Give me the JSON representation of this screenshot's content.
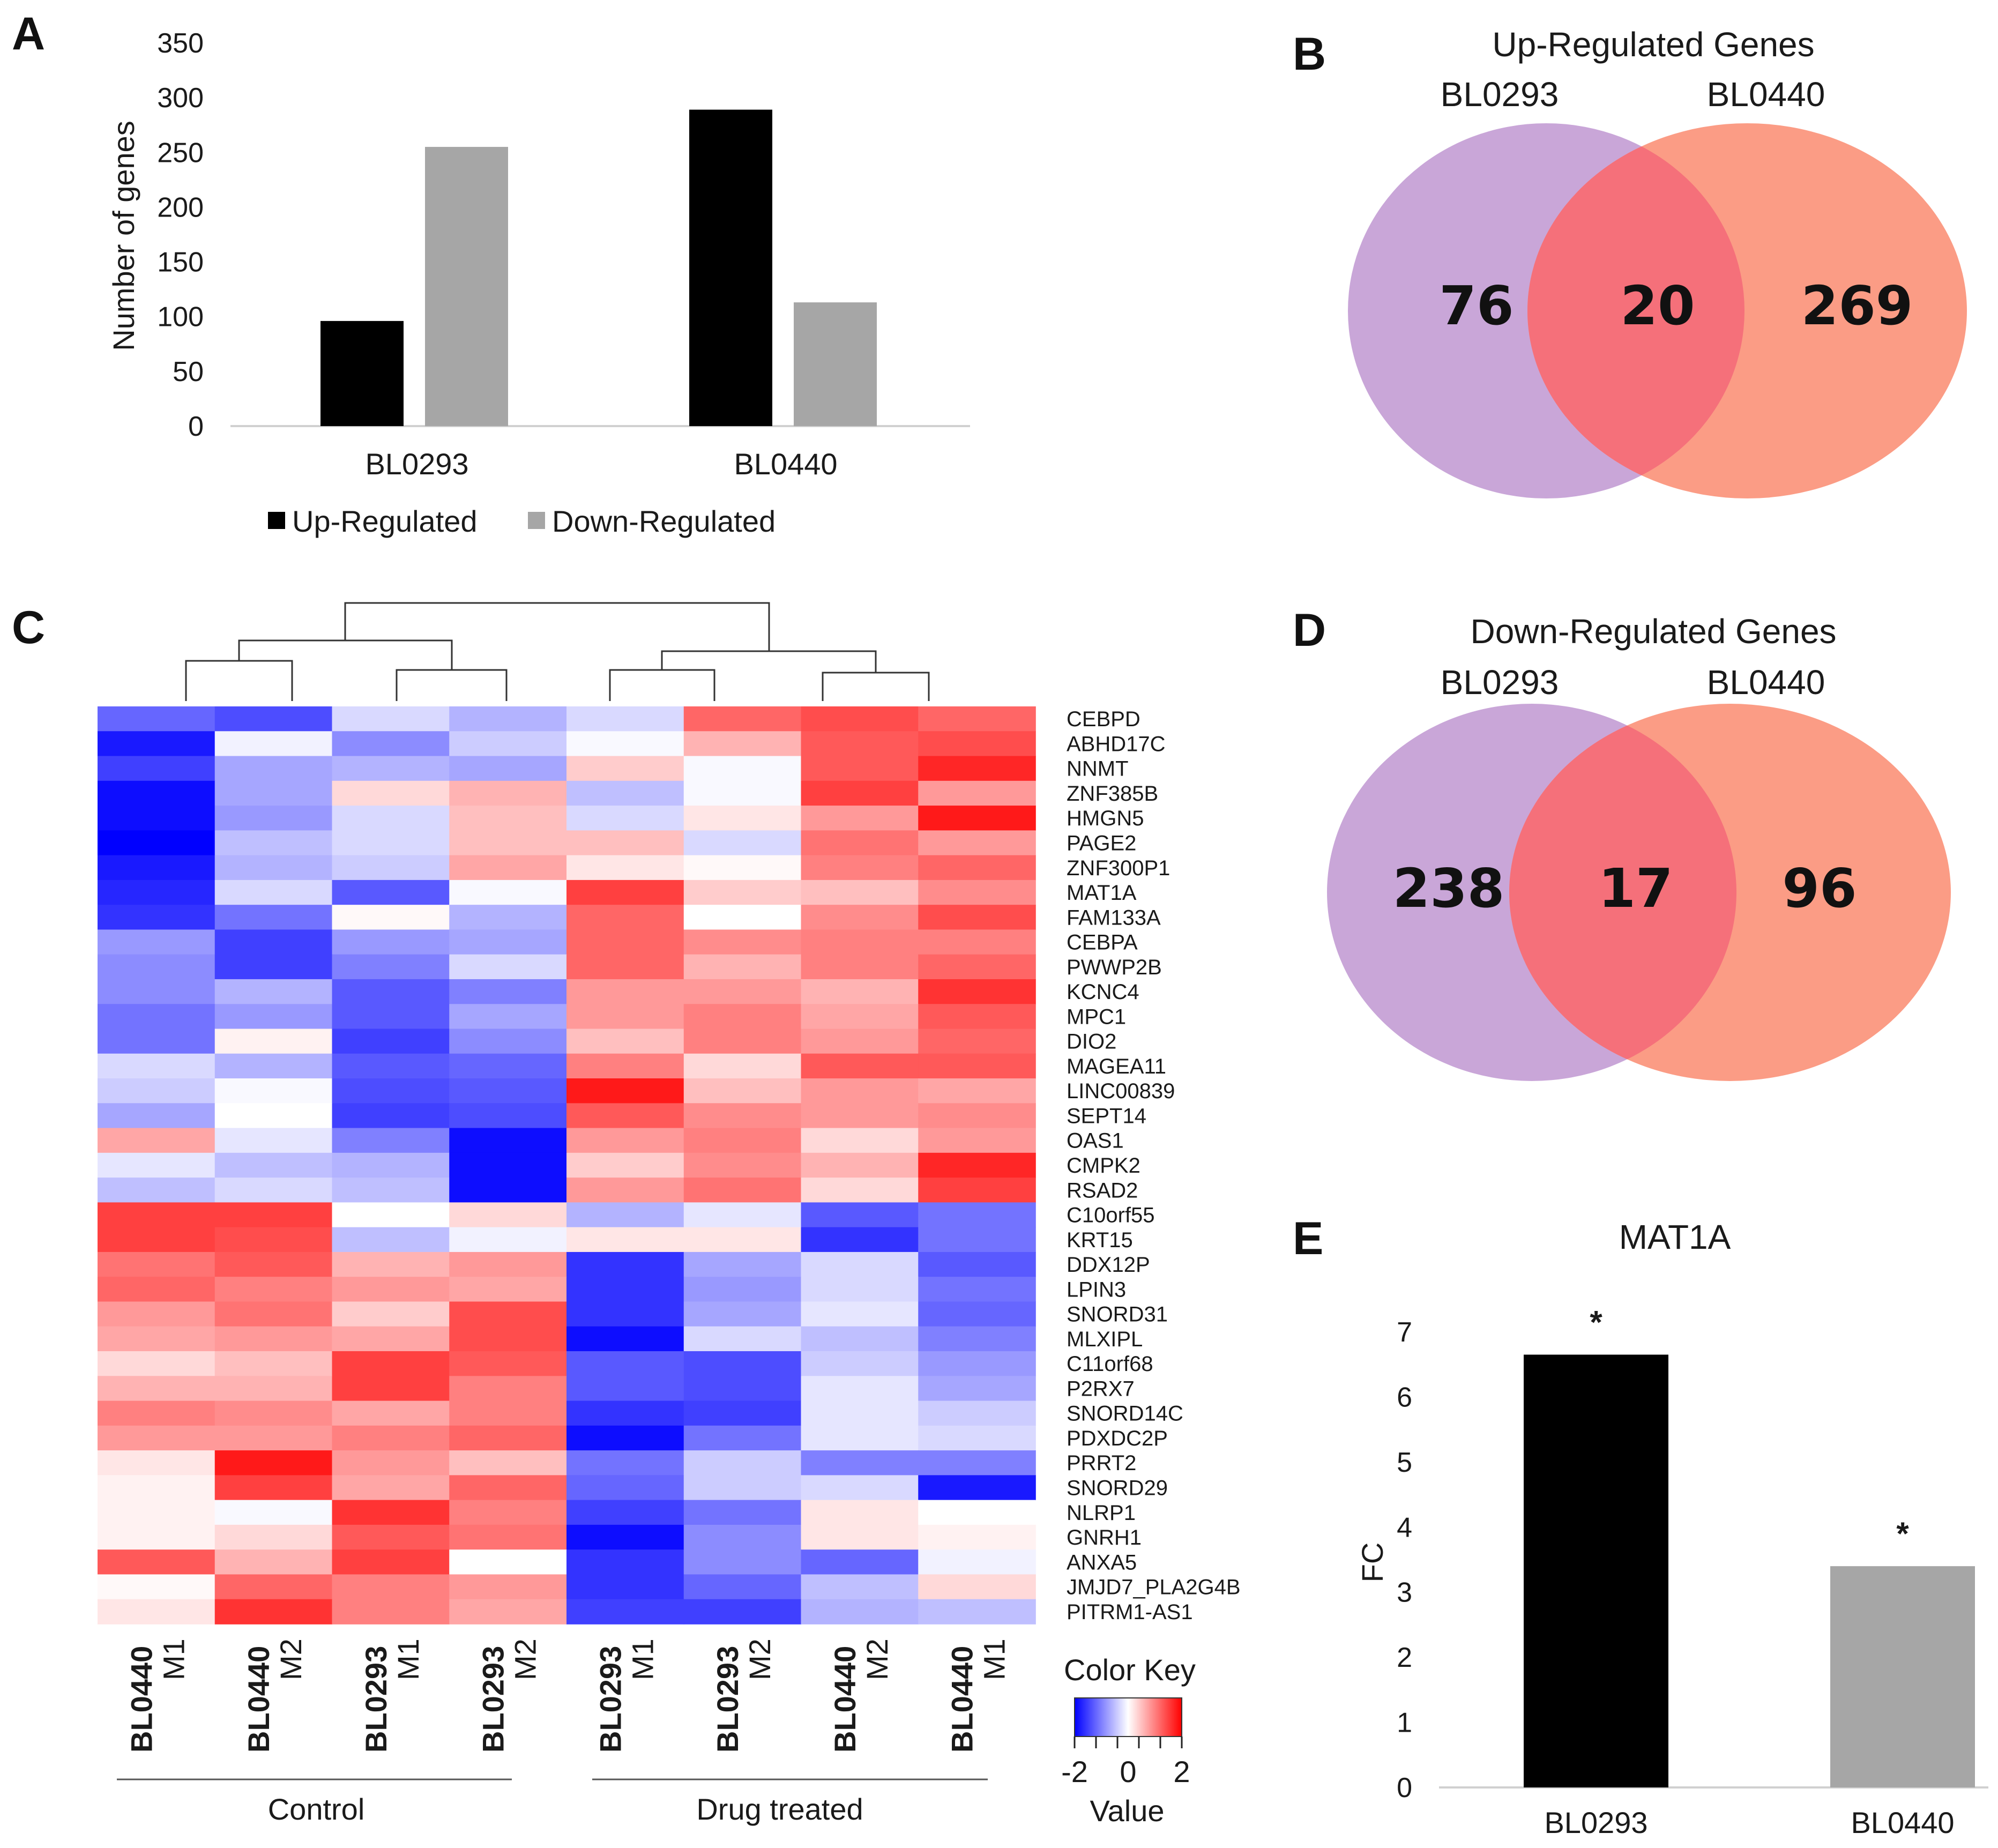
{
  "panels": [
    "A",
    "B",
    "C",
    "D",
    "E"
  ],
  "colors": {
    "up": "#000000",
    "down": "#a6a6a6",
    "venn_left": "#c9a6d8",
    "venn_right": "#fb9c85",
    "venn_overlap": "#f5707a",
    "heat_low": "#0000ff",
    "heat_mid": "#ffffff",
    "heat_high": "#ff0000"
  },
  "chart_data": [
    {
      "id": "A",
      "type": "bar",
      "title": "",
      "xlabel": "",
      "ylabel": "Number of genes",
      "ylim": [
        0,
        350
      ],
      "yticks": [
        "0",
        "50",
        "100",
        "150",
        "200",
        "250",
        "300",
        "350"
      ],
      "categories": [
        "BL0293",
        "BL0440"
      ],
      "series": [
        {
          "name": "Up-Regulated",
          "values": [
            96,
            289
          ]
        },
        {
          "name": "Down-Regulated",
          "values": [
            255,
            113
          ]
        }
      ],
      "legend": "bottom"
    },
    {
      "id": "B",
      "type": "venn",
      "title": "Up-Regulated Genes",
      "sets": [
        "BL0293",
        "BL0440"
      ],
      "values": {
        "left_only": "76",
        "overlap": "20",
        "right_only": "269"
      }
    },
    {
      "id": "C",
      "type": "heatmap",
      "genes": [
        "CEBPD",
        "ABHD17C",
        "NNMT",
        "ZNF385B",
        "HMGN5",
        "PAGE2",
        "ZNF300P1",
        "MAT1A",
        "FAM133A",
        "CEBPA",
        "PWWP2B",
        "KCNC4",
        "MPC1",
        "DIO2",
        "MAGEA11",
        "LINC00839",
        "SEPT14",
        "OAS1",
        "CMPK2",
        "RSAD2",
        "C10orf55",
        "KRT15",
        "DDX12P",
        "LPIN3",
        "SNORD31",
        "MLXIPL",
        "C11orf68",
        "P2RX7",
        "SNORD14C",
        "PDXDC2P",
        "PRRT2",
        "SNORD29",
        "NLRP1",
        "GNRH1",
        "ANXA5",
        "JMJD7_PLA2G4B",
        "PITRM1-AS1"
      ],
      "samples": [
        {
          "line": "BL0440",
          "rep": "M1"
        },
        {
          "line": "BL0440",
          "rep": "M2"
        },
        {
          "line": "BL0293",
          "rep": "M1"
        },
        {
          "line": "BL0293",
          "rep": "M2"
        },
        {
          "line": "BL0293",
          "rep": "M1"
        },
        {
          "line": "BL0293",
          "rep": "M2"
        },
        {
          "line": "BL0440",
          "rep": "M2"
        },
        {
          "line": "BL0440",
          "rep": "M1"
        }
      ],
      "groups": [
        "Control",
        "Drug treated"
      ],
      "color_key": {
        "title": "Color Key",
        "ticks": [
          "-2",
          "0",
          "2"
        ],
        "label": "Value",
        "range": [
          -2,
          2
        ]
      },
      "values": [
        [
          -1.2,
          -1.4,
          -0.3,
          -0.6,
          -0.3,
          1.2,
          1.4,
          1.2
        ],
        [
          -1.8,
          -0.1,
          -0.9,
          -0.4,
          -0.05,
          0.6,
          1.3,
          1.4
        ],
        [
          -1.5,
          -0.7,
          -0.6,
          -0.7,
          0.4,
          -0.05,
          1.3,
          1.7
        ],
        [
          -1.9,
          -0.7,
          0.3,
          0.6,
          -0.5,
          -0.05,
          1.5,
          0.8
        ],
        [
          -1.9,
          -0.8,
          -0.3,
          0.5,
          -0.3,
          0.2,
          0.8,
          1.8
        ],
        [
          -2.0,
          -0.5,
          -0.3,
          0.5,
          0.5,
          -0.3,
          1.1,
          0.8
        ],
        [
          -1.8,
          -0.6,
          -0.4,
          0.7,
          0.2,
          0.05,
          1.0,
          1.2
        ],
        [
          -1.7,
          -0.3,
          -1.3,
          -0.05,
          1.5,
          0.4,
          0.5,
          0.9
        ],
        [
          -1.6,
          -1.1,
          0.05,
          -0.6,
          1.2,
          0.0,
          0.9,
          1.4
        ],
        [
          -0.8,
          -1.5,
          -0.8,
          -0.7,
          1.2,
          0.9,
          1.0,
          1.0
        ],
        [
          -0.9,
          -1.5,
          -1.0,
          -0.3,
          1.2,
          0.6,
          1.0,
          1.2
        ],
        [
          -0.9,
          -0.6,
          -1.3,
          -1.0,
          0.8,
          0.8,
          0.6,
          1.6
        ],
        [
          -1.1,
          -0.8,
          -1.3,
          -0.7,
          0.8,
          1.0,
          0.7,
          1.3
        ],
        [
          -1.1,
          0.1,
          -1.5,
          -0.9,
          0.5,
          1.0,
          0.8,
          1.2
        ],
        [
          -0.3,
          -0.6,
          -1.3,
          -1.2,
          1.0,
          0.3,
          1.3,
          1.3
        ],
        [
          -0.4,
          -0.05,
          -1.4,
          -1.3,
          1.8,
          0.5,
          0.8,
          0.7
        ],
        [
          -0.7,
          0.0,
          -1.5,
          -1.4,
          1.3,
          0.9,
          0.8,
          0.9
        ],
        [
          0.7,
          -0.2,
          -1.0,
          -1.9,
          0.8,
          1.0,
          0.3,
          0.8
        ],
        [
          -0.2,
          -0.5,
          -0.6,
          -1.9,
          0.4,
          0.9,
          0.6,
          1.7
        ],
        [
          -0.5,
          -0.3,
          -0.5,
          -1.9,
          0.8,
          1.1,
          0.3,
          1.5
        ],
        [
          1.5,
          1.5,
          0.0,
          0.3,
          -0.6,
          -0.2,
          -1.3,
          -1.1
        ],
        [
          1.5,
          1.4,
          -0.5,
          -0.1,
          0.2,
          0.2,
          -1.6,
          -1.1
        ],
        [
          1.1,
          1.3,
          0.6,
          0.8,
          -1.6,
          -0.7,
          -0.3,
          -1.3
        ],
        [
          1.2,
          1.0,
          0.8,
          0.7,
          -1.6,
          -0.8,
          -0.3,
          -1.1
        ],
        [
          0.8,
          1.1,
          0.4,
          1.4,
          -1.6,
          -0.7,
          -0.2,
          -1.2
        ],
        [
          0.7,
          0.8,
          0.7,
          1.4,
          -1.9,
          -0.3,
          -0.5,
          -1.0
        ],
        [
          0.3,
          0.5,
          1.5,
          1.3,
          -1.3,
          -1.4,
          -0.4,
          -0.8
        ],
        [
          0.6,
          0.6,
          1.5,
          1.0,
          -1.3,
          -1.4,
          -0.2,
          -0.7
        ],
        [
          1.0,
          0.9,
          0.7,
          1.0,
          -1.6,
          -1.5,
          -0.2,
          -0.4
        ],
        [
          0.8,
          0.8,
          1.0,
          1.2,
          -1.9,
          -1.1,
          -0.2,
          -0.3
        ],
        [
          0.2,
          1.8,
          0.8,
          0.5,
          -1.1,
          -0.4,
          -1.0,
          -1.0
        ],
        [
          0.1,
          1.5,
          0.7,
          1.2,
          -1.2,
          -0.4,
          -0.3,
          -1.8
        ],
        [
          0.1,
          -0.05,
          1.6,
          1.0,
          -1.5,
          -1.1,
          0.2,
          0.0
        ],
        [
          0.1,
          0.3,
          1.3,
          1.1,
          -1.9,
          -0.9,
          0.2,
          0.1
        ],
        [
          1.3,
          0.6,
          1.5,
          0.0,
          -1.6,
          -0.9,
          -1.2,
          -0.1
        ],
        [
          0.05,
          1.2,
          1.0,
          0.8,
          -1.6,
          -1.2,
          -0.5,
          0.3
        ],
        [
          0.2,
          1.6,
          1.0,
          0.7,
          -1.5,
          -1.5,
          -0.6,
          -0.5
        ]
      ]
    },
    {
      "id": "D",
      "type": "venn",
      "title": "Down-Regulated Genes",
      "sets": [
        "BL0293",
        "BL0440"
      ],
      "values": {
        "left_only": "238",
        "overlap": "17",
        "right_only": "96"
      }
    },
    {
      "id": "E",
      "type": "bar",
      "title": "MAT1A",
      "xlabel": "",
      "ylabel": "FC",
      "ylim": [
        0,
        7
      ],
      "yticks": [
        "0",
        "1",
        "2",
        "3",
        "4",
        "5",
        "6",
        "7"
      ],
      "categories": [
        "BL0293",
        "BL0440"
      ],
      "values": [
        6.65,
        3.4
      ],
      "annotations": [
        "*",
        "*"
      ]
    }
  ]
}
